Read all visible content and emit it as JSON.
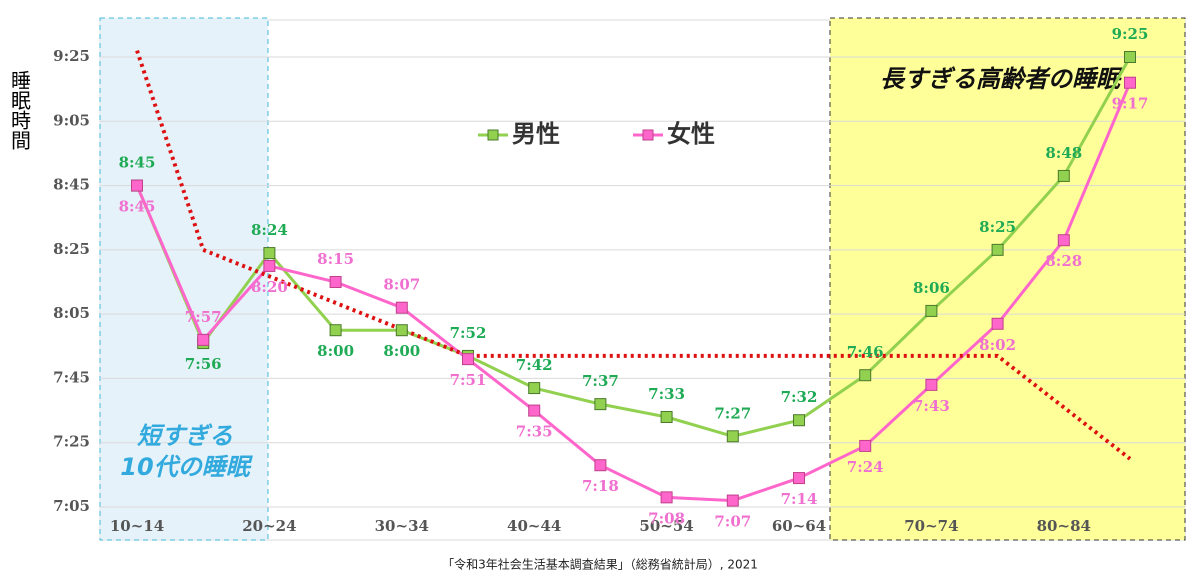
{
  "chart_data": {
    "type": "line",
    "y_label": "睡眠時間",
    "source": "「令和3年社会生活基本調査結果」（総務省統計局）, 2021",
    "categories": [
      "10~14",
      null,
      "20~24",
      null,
      "30~34",
      null,
      "40~44",
      null,
      "50~54",
      null,
      "60~64",
      null,
      "70~74",
      null,
      "80~84",
      null
    ],
    "ylim": [
      425,
      565
    ],
    "yticks": [
      {
        "value": 425,
        "label": "7:05"
      },
      {
        "value": 445,
        "label": "7:25"
      },
      {
        "value": 465,
        "label": "7:45"
      },
      {
        "value": 485,
        "label": "8:05"
      },
      {
        "value": 505,
        "label": "8:25"
      },
      {
        "value": 525,
        "label": "8:45"
      },
      {
        "value": 545,
        "label": "9:05"
      },
      {
        "value": 565,
        "label": "9:25"
      }
    ],
    "grid": true,
    "series": [
      {
        "name": "男性",
        "color": "#92d050",
        "label_color": "#1faa55",
        "values": [
          525,
          476,
          504,
          480,
          480,
          472,
          462,
          457,
          453,
          447,
          452,
          466,
          486,
          505,
          528,
          565
        ],
        "value_labels": [
          "8:45",
          "7:56",
          "8:24",
          "8:00",
          "8:00",
          "7:52",
          "7:42",
          "7:37",
          "7:33",
          "7:27",
          "7:32",
          "7:46",
          "8:06",
          "8:25",
          "8:48",
          "9:25"
        ]
      },
      {
        "name": "女性",
        "color": "#ff66cc",
        "label_color": "#f070d0",
        "values": [
          525,
          477,
          500,
          495,
          487,
          471,
          455,
          438,
          428,
          427,
          434,
          444,
          463,
          482,
          508,
          557
        ],
        "value_labels": [
          "8:45",
          "7:57",
          "8:20",
          "8:15",
          "8:07",
          "7:51",
          "7:35",
          "7:18",
          "7:08",
          "7:07",
          "7:14",
          "7:24",
          "7:43",
          "8:02",
          "8:28",
          "9:17"
        ]
      },
      {
        "color": "#dd1111",
        "style": "dotted",
        "values": [
          567,
          505,
          496.75,
          488.5,
          480.25,
          472,
          472,
          472,
          472,
          472,
          472,
          472,
          472,
          472,
          456,
          440
        ]
      }
    ],
    "annotations": [
      {
        "text": [
          "短すぎる",
          "10代の睡眠"
        ],
        "color": "#33aadd",
        "fill": "#e6f2fa"
      },
      {
        "text": [
          "長すぎる高齢者の睡眠"
        ],
        "color": "#111111",
        "fill": "#ffff99"
      }
    ]
  }
}
